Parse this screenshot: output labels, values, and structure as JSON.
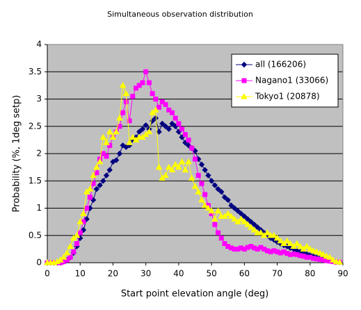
{
  "chart_data": {
    "type": "line",
    "title": "Simultaneous observation distribution",
    "x_label": "Start point elevation angle (deg)",
    "y_label": "Probability (%, 1deg setp)",
    "xlim": [
      0,
      90
    ],
    "xticks": [
      0,
      10,
      20,
      30,
      40,
      50,
      60,
      70,
      80,
      90
    ],
    "ylim": [
      0,
      4
    ],
    "yticks": [
      0,
      0.5,
      1,
      1.5,
      2,
      2.5,
      3,
      3.5,
      4
    ],
    "grid": true,
    "legend": "upper right",
    "x": [
      0,
      1,
      2,
      3,
      4,
      5,
      6,
      7,
      8,
      9,
      10,
      11,
      12,
      13,
      14,
      15,
      16,
      17,
      18,
      19,
      20,
      21,
      22,
      23,
      24,
      25,
      26,
      27,
      28,
      29,
      30,
      31,
      32,
      33,
      34,
      35,
      36,
      37,
      38,
      39,
      40,
      41,
      42,
      43,
      44,
      45,
      46,
      47,
      48,
      49,
      50,
      51,
      52,
      53,
      54,
      55,
      56,
      57,
      58,
      59,
      60,
      61,
      62,
      63,
      64,
      65,
      66,
      67,
      68,
      69,
      70,
      71,
      72,
      73,
      74,
      75,
      76,
      77,
      78,
      79,
      80,
      81,
      82,
      83,
      84,
      85,
      86,
      87,
      88,
      89
    ],
    "series": [
      {
        "name": "all (166206)",
        "color": "#000080",
        "marker": "diamond",
        "values": [
          0,
          0,
          0,
          0,
          0,
          0.02,
          0.05,
          0.1,
          0.18,
          0.3,
          0.45,
          0.6,
          0.8,
          1.0,
          1.15,
          1.35,
          1.42,
          1.5,
          1.6,
          1.7,
          1.85,
          1.88,
          2.0,
          2.15,
          2.12,
          2.15,
          2.25,
          2.3,
          2.4,
          2.45,
          2.52,
          2.45,
          2.6,
          2.65,
          2.4,
          2.55,
          2.5,
          2.45,
          2.55,
          2.5,
          2.4,
          2.3,
          2.2,
          2.15,
          2.1,
          2.05,
          1.9,
          1.8,
          1.7,
          1.6,
          1.5,
          1.42,
          1.35,
          1.3,
          1.2,
          1.15,
          1.05,
          1.0,
          0.95,
          0.9,
          0.85,
          0.8,
          0.75,
          0.7,
          0.65,
          0.6,
          0.55,
          0.5,
          0.45,
          0.42,
          0.38,
          0.35,
          0.32,
          0.3,
          0.27,
          0.25,
          0.22,
          0.2,
          0.18,
          0.16,
          0.14,
          0.12,
          0.1,
          0.08,
          0.07,
          0.05,
          0.04,
          0.03,
          0.02,
          0.01
        ]
      },
      {
        "name": "Nagano1 (33066)",
        "color": "#ff00ff",
        "marker": "square",
        "values": [
          0,
          0,
          0,
          0,
          0,
          0.02,
          0.05,
          0.1,
          0.2,
          0.35,
          0.55,
          0.75,
          1.0,
          1.2,
          1.45,
          1.65,
          1.9,
          2.0,
          1.95,
          2.15,
          2.3,
          2.4,
          2.5,
          2.75,
          2.95,
          2.6,
          3.05,
          3.2,
          3.25,
          3.3,
          3.5,
          3.3,
          3.1,
          3.0,
          2.85,
          2.95,
          2.9,
          2.8,
          2.75,
          2.65,
          2.55,
          2.45,
          2.35,
          2.25,
          2.1,
          1.9,
          1.6,
          1.45,
          1.25,
          1.05,
          0.9,
          0.7,
          0.55,
          0.45,
          0.35,
          0.3,
          0.27,
          0.25,
          0.25,
          0.27,
          0.25,
          0.28,
          0.3,
          0.27,
          0.25,
          0.28,
          0.25,
          0.22,
          0.2,
          0.22,
          0.2,
          0.18,
          0.2,
          0.17,
          0.15,
          0.16,
          0.15,
          0.13,
          0.12,
          0.1,
          0.1,
          0.08,
          0.07,
          0.06,
          0.05,
          0.04,
          0.03,
          0.02,
          0.01,
          0.01
        ]
      },
      {
        "name": "Tokyo1 (20878)",
        "color": "#ffff00",
        "marker": "triangle",
        "values": [
          0,
          0,
          0,
          0.02,
          0.05,
          0.1,
          0.18,
          0.3,
          0.45,
          0.5,
          0.75,
          0.9,
          1.3,
          1.35,
          1.6,
          1.75,
          1.85,
          2.3,
          2.2,
          2.4,
          2.3,
          2.4,
          2.65,
          3.25,
          3.1,
          2.2,
          2.3,
          2.25,
          2.3,
          2.3,
          2.35,
          2.4,
          2.75,
          2.8,
          1.75,
          1.55,
          1.6,
          1.75,
          1.7,
          1.8,
          1.75,
          1.85,
          1.7,
          1.85,
          1.55,
          1.4,
          1.3,
          1.15,
          1.05,
          1.0,
          0.95,
          0.8,
          0.95,
          0.85,
          0.85,
          0.9,
          0.85,
          0.8,
          0.75,
          0.8,
          0.75,
          0.7,
          0.65,
          0.6,
          0.55,
          0.55,
          0.5,
          0.55,
          0.5,
          0.5,
          0.45,
          0.4,
          0.35,
          0.4,
          0.35,
          0.3,
          0.35,
          0.3,
          0.25,
          0.3,
          0.25,
          0.22,
          0.2,
          0.18,
          0.15,
          0.12,
          0.1,
          0.05,
          0.02,
          0.01
        ]
      }
    ]
  }
}
